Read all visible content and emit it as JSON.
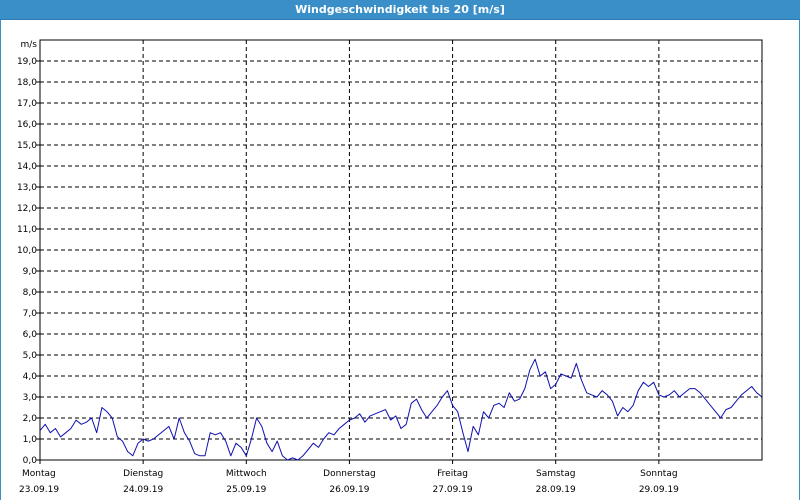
{
  "window": {
    "title": "Windgeschwindigkeit bis 20 [m/s]"
  },
  "chart_data": {
    "type": "line",
    "title": "Windgeschwindigkeit bis 20 [m/s]",
    "ylabel": "m/s",
    "ylim": [
      0,
      20
    ],
    "yticks": [
      "0,0",
      "1,0",
      "2,0",
      "3,0",
      "4,0",
      "5,0",
      "6,0",
      "7,0",
      "8,0",
      "9,0",
      "10,0",
      "11,0",
      "12,0",
      "13,0",
      "14,0",
      "15,0",
      "16,0",
      "17,0",
      "18,0",
      "19,0"
    ],
    "xlim": [
      0,
      7
    ],
    "x_unit": "days",
    "grid": true,
    "days": [
      {
        "name": "Montag",
        "date": "23.09.19"
      },
      {
        "name": "Dienstag",
        "date": "24.09.19"
      },
      {
        "name": "Mittwoch",
        "date": "25.09.19"
      },
      {
        "name": "Donnerstag",
        "date": "26.09.19"
      },
      {
        "name": "Freitag",
        "date": "27.09.19"
      },
      {
        "name": "Samstag",
        "date": "28.09.19"
      },
      {
        "name": "Sonntag",
        "date": "29.09.19"
      }
    ],
    "series": [
      {
        "color": "#1010b0",
        "x": [
          0,
          0.05,
          0.1,
          0.15,
          0.2,
          0.25,
          0.3,
          0.35,
          0.4,
          0.45,
          0.5,
          0.55,
          0.6,
          0.65,
          0.7,
          0.75,
          0.8,
          0.85,
          0.9,
          0.95,
          1.0,
          1.05,
          1.1,
          1.15,
          1.2,
          1.25,
          1.3,
          1.35,
          1.4,
          1.45,
          1.5,
          1.55,
          1.6,
          1.65,
          1.7,
          1.75,
          1.8,
          1.85,
          1.9,
          1.95,
          2.0,
          2.05,
          2.1,
          2.15,
          2.2,
          2.25,
          2.3,
          2.35,
          2.4,
          2.45,
          2.5,
          2.55,
          2.6,
          2.65,
          2.7,
          2.75,
          2.8,
          2.85,
          2.9,
          2.95,
          3.0,
          3.05,
          3.1,
          3.15,
          3.2,
          3.25,
          3.3,
          3.35,
          3.4,
          3.45,
          3.5,
          3.55,
          3.6,
          3.65,
          3.7,
          3.75,
          3.8,
          3.85,
          3.9,
          3.95,
          4.0,
          4.05,
          4.1,
          4.15,
          4.2,
          4.25,
          4.3,
          4.35,
          4.4,
          4.45,
          4.5,
          4.55,
          4.6,
          4.65,
          4.7,
          4.75,
          4.8,
          4.85,
          4.9,
          4.95,
          5.0,
          5.05,
          5.1,
          5.15,
          5.2,
          5.25,
          5.3,
          5.35,
          5.4,
          5.45,
          5.5,
          5.55,
          5.6,
          5.65,
          5.7,
          5.75,
          5.8,
          5.85,
          5.9,
          5.95,
          6.0,
          6.05,
          6.1,
          6.15,
          6.2,
          6.25,
          6.3,
          6.35,
          6.4,
          6.45,
          6.5,
          6.55,
          6.6,
          6.65,
          6.7,
          6.75,
          6.8,
          6.85,
          6.9,
          6.95,
          7.0
        ],
        "y": [
          1.4,
          1.7,
          1.3,
          1.5,
          1.1,
          1.3,
          1.5,
          1.9,
          1.7,
          1.8,
          2.0,
          1.3,
          2.5,
          2.3,
          2.0,
          1.1,
          0.9,
          0.4,
          0.2,
          0.8,
          1.0,
          0.9,
          1.0,
          1.2,
          1.4,
          1.6,
          1.0,
          2.0,
          1.3,
          0.9,
          0.3,
          0.2,
          0.2,
          1.3,
          1.2,
          1.3,
          0.9,
          0.2,
          0.8,
          0.6,
          0.2,
          1.0,
          2.0,
          1.6,
          0.8,
          0.4,
          0.9,
          0.2,
          0.0,
          0.1,
          0.0,
          0.2,
          0.5,
          0.8,
          0.6,
          1.0,
          1.3,
          1.2,
          1.5,
          1.7,
          1.9,
          2.0,
          2.2,
          1.8,
          2.1,
          2.2,
          2.3,
          2.4,
          1.9,
          2.1,
          1.5,
          1.7,
          2.7,
          2.9,
          2.4,
          2.0,
          2.3,
          2.6,
          3.0,
          3.3,
          2.6,
          2.3,
          1.3,
          0.4,
          1.6,
          1.2,
          2.3,
          2.0,
          2.6,
          2.7,
          2.5,
          3.2,
          2.8,
          2.9,
          3.4,
          4.3,
          4.8,
          4.0,
          4.2,
          3.4,
          3.6,
          4.1,
          4.0,
          3.9,
          4.6,
          3.8,
          3.2,
          3.1,
          3.0,
          3.3,
          3.1,
          2.8,
          2.1,
          2.5,
          2.3,
          2.6,
          3.3,
          3.7,
          3.5,
          3.7,
          3.1,
          3.0,
          3.1,
          3.3,
          3.0,
          3.2,
          3.4,
          3.4,
          3.2,
          2.9,
          2.6,
          2.3,
          2.0,
          2.4,
          2.5,
          2.8,
          3.1,
          3.3,
          3.5,
          3.2,
          3.0
        ]
      }
    ]
  }
}
